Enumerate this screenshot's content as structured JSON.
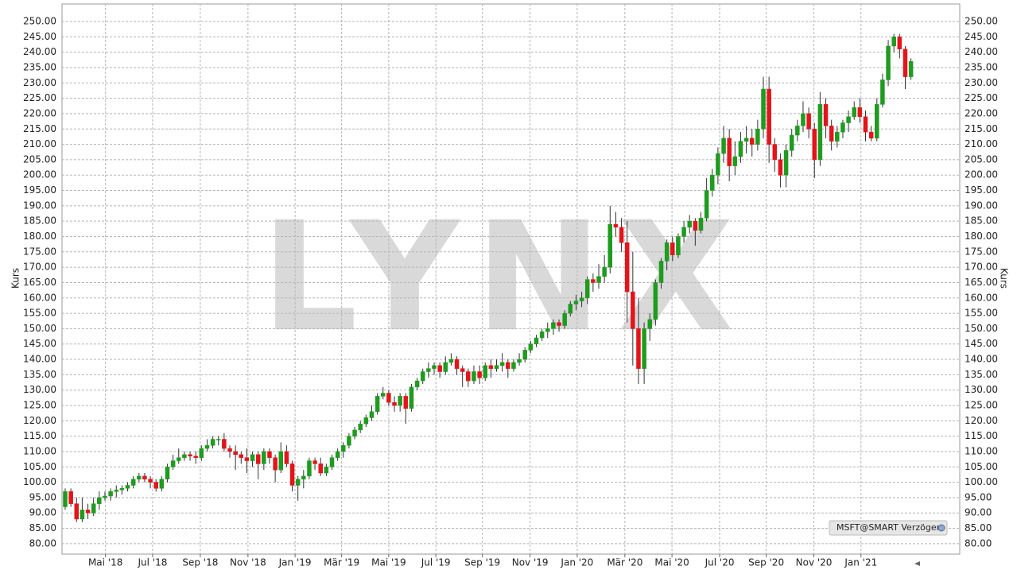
{
  "chart_data": {
    "type": "candlestick",
    "watermark": "LYNX",
    "y_label": "Kurs",
    "legend_label": "MSFT@SMART Verzögert",
    "up_color": "#1f9b1f",
    "down_color": "#e3141b",
    "grid": true,
    "xlim": [
      -0.56,
      157.6
    ],
    "xticks": [
      {
        "value": 7.1,
        "label": "Mai '18"
      },
      {
        "value": 15.4,
        "label": "Jul '18"
      },
      {
        "value": 23.8,
        "label": "Sep '18"
      },
      {
        "value": 32.2,
        "label": "Nov '18"
      },
      {
        "value": 40.5,
        "label": "Jan '19"
      },
      {
        "value": 48.7,
        "label": "Mär '19"
      },
      {
        "value": 57.0,
        "label": "Mai '19"
      },
      {
        "value": 65.3,
        "label": "Jul '19"
      },
      {
        "value": 73.5,
        "label": "Sep '19"
      },
      {
        "value": 81.9,
        "label": "Nov '19"
      },
      {
        "value": 90.2,
        "label": "Jan '20"
      },
      {
        "value": 98.6,
        "label": "Mär '20"
      },
      {
        "value": 106.9,
        "label": "Mai '20"
      },
      {
        "value": 115.3,
        "label": "Jul '20"
      },
      {
        "value": 123.5,
        "label": "Sep '20"
      },
      {
        "value": 131.9,
        "label": "Nov '20"
      },
      {
        "value": 140.2,
        "label": "Jan '21"
      }
    ],
    "ylim": [
      76.6,
      255.7
    ],
    "yticks": [
      {
        "value": 80,
        "label": "80.00"
      },
      {
        "value": 85,
        "label": "85.00"
      },
      {
        "value": 90,
        "label": "90.00"
      },
      {
        "value": 95,
        "label": "95.00"
      },
      {
        "value": 100,
        "label": "100.00"
      },
      {
        "value": 105,
        "label": "105.00"
      },
      {
        "value": 110,
        "label": "110.00"
      },
      {
        "value": 115,
        "label": "115.00"
      },
      {
        "value": 120,
        "label": "120.00"
      },
      {
        "value": 125,
        "label": "125.00"
      },
      {
        "value": 130,
        "label": "130.00"
      },
      {
        "value": 135,
        "label": "135.00"
      },
      {
        "value": 140,
        "label": "140.00"
      },
      {
        "value": 145,
        "label": "145.00"
      },
      {
        "value": 150,
        "label": "150.00"
      },
      {
        "value": 155,
        "label": "155.00"
      },
      {
        "value": 160,
        "label": "160.00"
      },
      {
        "value": 165,
        "label": "165.00"
      },
      {
        "value": 170,
        "label": "170.00"
      },
      {
        "value": 175,
        "label": "175.00"
      },
      {
        "value": 180,
        "label": "180.00"
      },
      {
        "value": 185,
        "label": "185.00"
      },
      {
        "value": 190,
        "label": "190.00"
      },
      {
        "value": 195,
        "label": "195.00"
      },
      {
        "value": 200,
        "label": "200.00"
      },
      {
        "value": 205,
        "label": "205.00"
      },
      {
        "value": 210,
        "label": "210.00"
      },
      {
        "value": 215,
        "label": "215.00"
      },
      {
        "value": 220,
        "label": "220.00"
      },
      {
        "value": 225,
        "label": "225.00"
      },
      {
        "value": 230,
        "label": "230.00"
      },
      {
        "value": 235,
        "label": "235.00"
      },
      {
        "value": 240,
        "label": "240.00"
      },
      {
        "value": 245,
        "label": "245.00"
      },
      {
        "value": 250,
        "label": "250.00"
      }
    ],
    "open": [
      92,
      97,
      93,
      88,
      91,
      90,
      93,
      95,
      95.5,
      97,
      97.5,
      98,
      99,
      101,
      102,
      101,
      100,
      98,
      101,
      105,
      107,
      108,
      109,
      108.5,
      108,
      111,
      112,
      114,
      114,
      111,
      110,
      109,
      108,
      107,
      109,
      106,
      110,
      108,
      104,
      110,
      106,
      99,
      101,
      102,
      107,
      106,
      103,
      105,
      108,
      110,
      112,
      115,
      117,
      119,
      121,
      123,
      128,
      129,
      126,
      125,
      128,
      124,
      131,
      133,
      136,
      137,
      138,
      136,
      139,
      140,
      137,
      136,
      133,
      136,
      134,
      138,
      137,
      138,
      139,
      137,
      139,
      140,
      143,
      145,
      147,
      149,
      150,
      152,
      151,
      155,
      158,
      159,
      160,
      166,
      165,
      167,
      170,
      184,
      183,
      178,
      162,
      150,
      137,
      150,
      153,
      165,
      172,
      178,
      174,
      180,
      183,
      185,
      182,
      186,
      195,
      200,
      207,
      212,
      203,
      206,
      211,
      212,
      210,
      215,
      228,
      210,
      205,
      200,
      208,
      213,
      216,
      220,
      215,
      205,
      223,
      216,
      211,
      214,
      217,
      219,
      222,
      219,
      214,
      212,
      223,
      231,
      242,
      245,
      241,
      232
    ],
    "high": [
      98,
      98,
      95,
      95,
      93,
      95,
      97,
      97,
      98,
      99,
      99,
      100,
      102,
      103,
      103,
      102,
      101,
      102,
      106,
      109,
      111,
      110,
      110,
      110,
      112,
      114,
      115,
      115,
      116,
      112,
      112,
      110,
      111,
      110,
      110,
      111,
      111,
      109,
      113,
      112,
      107,
      102,
      104,
      108,
      108,
      108,
      106,
      109,
      111,
      113,
      116,
      118,
      120,
      122,
      125,
      129,
      131,
      130,
      128,
      129,
      129,
      132,
      134,
      137,
      139,
      139,
      139,
      141,
      142,
      141,
      138,
      137,
      138,
      138,
      139,
      140,
      140,
      142,
      140,
      140,
      142,
      144,
      146,
      148,
      150,
      152,
      153,
      153,
      156,
      159,
      161,
      162,
      167,
      168,
      171,
      174,
      190,
      188,
      186,
      185,
      175,
      160,
      152,
      155,
      166,
      173,
      179,
      180,
      181,
      185,
      187,
      186,
      188,
      199,
      202,
      209,
      216,
      215,
      211,
      214,
      216,
      215,
      218,
      232,
      232,
      212,
      207,
      210,
      215,
      218,
      224,
      222,
      217,
      227,
      225,
      218,
      216,
      218,
      221,
      224,
      225,
      221,
      216,
      225,
      233,
      244,
      246,
      246,
      242,
      238
    ],
    "low": [
      91,
      92,
      87,
      87,
      88,
      89,
      91,
      94,
      94,
      95,
      96,
      97,
      98,
      100,
      100,
      98,
      97,
      97,
      100,
      104,
      106,
      107,
      107,
      106,
      107,
      110,
      111,
      112,
      110,
      108,
      104,
      106,
      103,
      105,
      101,
      104,
      106,
      100,
      103,
      105,
      97,
      94,
      98,
      101,
      104,
      102,
      102,
      104,
      107,
      108,
      111,
      114,
      116,
      118,
      120,
      122,
      127,
      125,
      123,
      123,
      119,
      123,
      130,
      132,
      134,
      135,
      134,
      135,
      138,
      135,
      131,
      131,
      132,
      132,
      133,
      134,
      136,
      136,
      134,
      136,
      138,
      139,
      142,
      144,
      146,
      147,
      148,
      149,
      150,
      154,
      156,
      157,
      158,
      162,
      163,
      165,
      168,
      180,
      175,
      152,
      138,
      132,
      132,
      146,
      151,
      163,
      169,
      172,
      173,
      178,
      181,
      177,
      181,
      185,
      193,
      197,
      204,
      198,
      200,
      204,
      207,
      206,
      208,
      212,
      204,
      201,
      196,
      196,
      206,
      211,
      214,
      212,
      199,
      203,
      212,
      208,
      209,
      212,
      214,
      218,
      217,
      211,
      211,
      211,
      222,
      229,
      240,
      238,
      228,
      231
    ],
    "close": [
      97,
      93,
      88,
      91,
      90,
      93,
      95,
      95.5,
      97,
      97.5,
      98,
      99,
      101,
      102,
      101,
      100,
      98,
      101,
      105,
      107,
      108,
      109,
      108.5,
      108,
      111,
      112,
      114,
      114,
      111,
      110,
      109,
      108,
      107,
      109,
      106,
      110,
      108,
      104,
      110,
      106,
      99,
      101,
      102,
      107,
      106,
      103,
      105,
      108,
      110,
      112,
      115,
      117,
      119,
      121,
      123,
      128,
      129,
      126,
      125,
      128,
      124,
      131,
      133,
      136,
      137,
      138,
      136,
      139,
      140,
      137,
      136,
      133,
      136,
      134,
      138,
      137,
      138,
      139,
      137,
      139,
      140,
      143,
      145,
      147,
      149,
      150,
      152,
      151,
      155,
      158,
      159,
      160,
      166,
      165,
      167,
      170,
      184,
      183,
      178,
      162,
      150,
      137,
      150,
      153,
      165,
      172,
      178,
      174,
      180,
      183,
      185,
      182,
      186,
      195,
      200,
      207,
      212,
      203,
      206,
      211,
      212,
      210,
      215,
      228,
      210,
      205,
      200,
      208,
      213,
      216,
      220,
      215,
      205,
      223,
      216,
      211,
      214,
      217,
      219,
      222,
      219,
      214,
      212,
      223,
      231,
      242,
      245,
      241,
      232,
      237
    ]
  }
}
